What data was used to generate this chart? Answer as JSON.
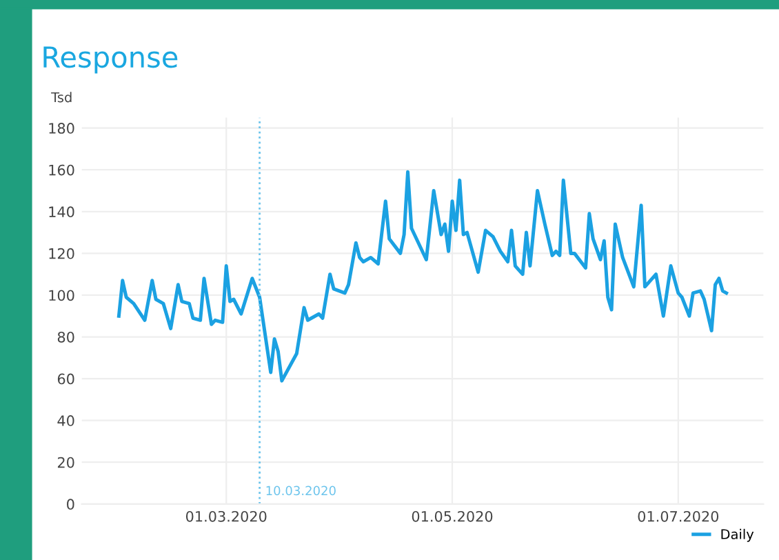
{
  "chart_data": {
    "type": "line",
    "title": "Response",
    "ylabel": "Tsd",
    "x": [
      "2020-02-01",
      "2020-02-02",
      "2020-02-03",
      "2020-02-05",
      "2020-02-08",
      "2020-02-10",
      "2020-02-11",
      "2020-02-13",
      "2020-02-15",
      "2020-02-17",
      "2020-02-18",
      "2020-02-20",
      "2020-02-21",
      "2020-02-23",
      "2020-02-24",
      "2020-02-26",
      "2020-02-27",
      "2020-02-29",
      "2020-03-01",
      "2020-03-02",
      "2020-03-03",
      "2020-03-05",
      "2020-03-08",
      "2020-03-10",
      "2020-03-13",
      "2020-03-14",
      "2020-03-15",
      "2020-03-16",
      "2020-03-20",
      "2020-03-22",
      "2020-03-23",
      "2020-03-26",
      "2020-03-27",
      "2020-03-29",
      "2020-03-30",
      "2020-04-02",
      "2020-04-03",
      "2020-04-05",
      "2020-04-06",
      "2020-04-07",
      "2020-04-09",
      "2020-04-11",
      "2020-04-13",
      "2020-04-14",
      "2020-04-17",
      "2020-04-18",
      "2020-04-19",
      "2020-04-20",
      "2020-04-24",
      "2020-04-26",
      "2020-04-28",
      "2020-04-29",
      "2020-04-30",
      "2020-05-01",
      "2020-05-02",
      "2020-05-03",
      "2020-05-04",
      "2020-05-05",
      "2020-05-08",
      "2020-05-10",
      "2020-05-12",
      "2020-05-14",
      "2020-05-16",
      "2020-05-17",
      "2020-05-18",
      "2020-05-20",
      "2020-05-21",
      "2020-05-22",
      "2020-05-24",
      "2020-05-26",
      "2020-05-28",
      "2020-05-29",
      "2020-05-30",
      "2020-05-31",
      "2020-06-02",
      "2020-06-03",
      "2020-06-06",
      "2020-06-07",
      "2020-06-08",
      "2020-06-10",
      "2020-06-11",
      "2020-06-12",
      "2020-06-13",
      "2020-06-14",
      "2020-06-16",
      "2020-06-19",
      "2020-06-21",
      "2020-06-22",
      "2020-06-25",
      "2020-06-27",
      "2020-06-29",
      "2020-07-01",
      "2020-07-02",
      "2020-07-04",
      "2020-07-05",
      "2020-07-07",
      "2020-07-08",
      "2020-07-10",
      "2020-07-11",
      "2020-07-12",
      "2020-07-13",
      "2020-07-14"
    ],
    "series": [
      {
        "name": "Daily",
        "color": "#1ba1e2",
        "values": [
          90,
          107,
          99,
          96,
          88,
          107,
          98,
          96,
          84,
          105,
          97,
          96,
          89,
          88,
          108,
          86,
          88,
          87,
          114,
          97,
          98,
          91,
          108,
          99,
          63,
          79,
          73,
          59,
          72,
          94,
          88,
          91,
          89,
          110,
          103,
          101,
          105,
          125,
          118,
          116,
          118,
          115,
          145,
          127,
          120,
          129,
          159,
          132,
          117,
          150,
          129,
          134,
          121,
          145,
          131,
          155,
          129,
          130,
          111,
          131,
          128,
          121,
          116,
          131,
          114,
          110,
          130,
          114,
          150,
          134,
          119,
          121,
          119,
          155,
          120,
          120,
          113,
          139,
          127,
          117,
          126,
          99,
          93,
          134,
          118,
          104,
          143,
          104,
          110,
          90,
          114,
          101,
          99,
          90,
          101,
          102,
          98,
          83,
          105,
          108,
          102,
          101
        ]
      }
    ],
    "ylim": [
      0,
      185
    ],
    "yticks": [
      0,
      20,
      40,
      60,
      80,
      100,
      120,
      140,
      160,
      180
    ],
    "xlim": [
      "2020-01-22",
      "2020-07-24"
    ],
    "xticks": [
      {
        "value": "2020-03-01",
        "label": "01.03.2020"
      },
      {
        "value": "2020-05-01",
        "label": "01.05.2020"
      },
      {
        "value": "2020-07-01",
        "label": "01.07.2020"
      }
    ],
    "ref_lines": [
      {
        "axis": "x",
        "value": "2020-03-10",
        "label": "10.03.2020",
        "color": "#6cc4ec",
        "line_style": "dotted"
      }
    ],
    "grid": true,
    "legend": "bottom right",
    "marker": "none",
    "line_style": "solid"
  }
}
